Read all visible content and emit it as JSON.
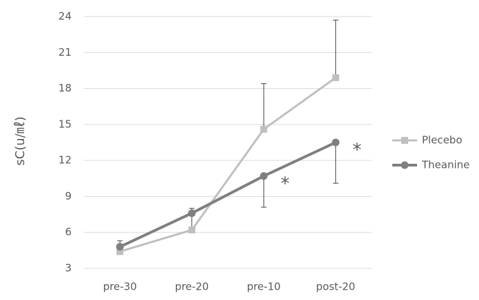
{
  "chart_data": {
    "type": "line",
    "y_label": "sC(u/㎖)",
    "categories": [
      "pre-30",
      "pre-20",
      "pre-10",
      "post-20"
    ],
    "series": [
      {
        "name": "Plecebo",
        "color": "#bfbfbf",
        "marker": "square",
        "values": [
          4.4,
          6.2,
          14.6,
          18.9
        ],
        "errors": [
          0.9,
          1.8,
          3.8,
          4.8
        ],
        "error_direction": "plus"
      },
      {
        "name": "Theanine",
        "color": "#7f7f7f",
        "marker": "circle",
        "values": [
          4.8,
          7.6,
          10.7,
          13.5
        ],
        "errors": [
          null,
          null,
          2.6,
          3.4
        ],
        "error_direction": "minus"
      }
    ],
    "annotations": [
      "*",
      "*"
    ],
    "ylim": [
      3,
      24
    ],
    "yticks": [
      3,
      6,
      9,
      12,
      15,
      18,
      21,
      24
    ],
    "grid": true,
    "legend": "right"
  }
}
